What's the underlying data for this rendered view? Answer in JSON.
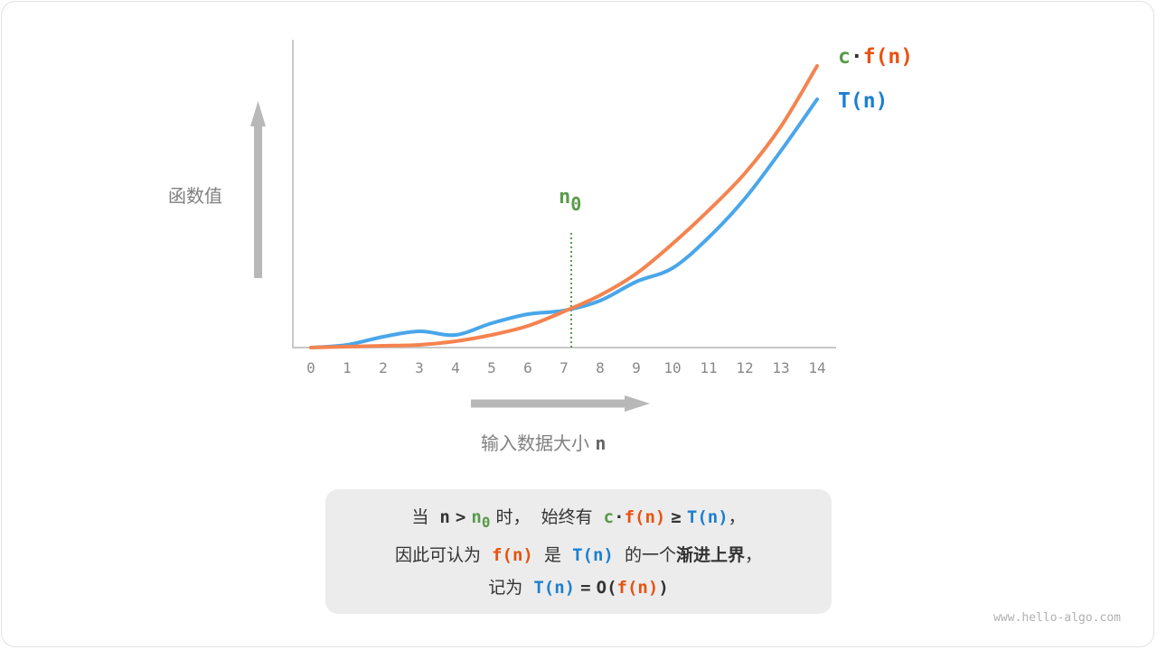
{
  "axes": {
    "y_label": "函数值",
    "x_label": "输入数据大小",
    "x_var": "n"
  },
  "chart_data": {
    "type": "line",
    "x": [
      0,
      1,
      2,
      3,
      4,
      5,
      6,
      7,
      8,
      9,
      10,
      11,
      12,
      13,
      14
    ],
    "xlim": [
      0,
      14
    ],
    "series": [
      {
        "name": "c·f(n)",
        "color": "#f5834f",
        "values": [
          0,
          1,
          2,
          3,
          7,
          14,
          24,
          40,
          58,
          82,
          115,
          152,
          193,
          245,
          312
        ]
      },
      {
        "name": "T(n)",
        "color": "#49a6ea",
        "values": [
          0,
          3,
          12,
          18,
          14,
          27,
          37,
          41,
          52,
          73,
          88,
          122,
          165,
          218,
          275
        ]
      }
    ],
    "threshold": {
      "label": "n",
      "subscript": "0",
      "x": 7.2,
      "color": "#5a9a4a"
    },
    "grid": false
  },
  "legend": {
    "c": "c",
    "dot": "·",
    "f": "f(n)",
    "t": "T(n)"
  },
  "caption": {
    "l1": [
      "当",
      "n",
      ">",
      "n",
      "0",
      "时，",
      "始终有",
      "c",
      "·",
      "f(n)",
      "≥",
      "T(n)",
      "，"
    ],
    "l2": [
      "因此可认为",
      "f(n)",
      "是",
      "T(n)",
      "的一个",
      "渐进上界",
      "，"
    ],
    "l3": [
      "记为",
      "T(n)",
      "=",
      "O(",
      "f(n)",
      ")"
    ]
  },
  "watermark": "www.hello-algo.com",
  "colors": {
    "orange_text": "#e8520f",
    "blue_text": "#1a7fd0",
    "green": "#5a9a4a",
    "arrow": "#b8b8b8"
  }
}
